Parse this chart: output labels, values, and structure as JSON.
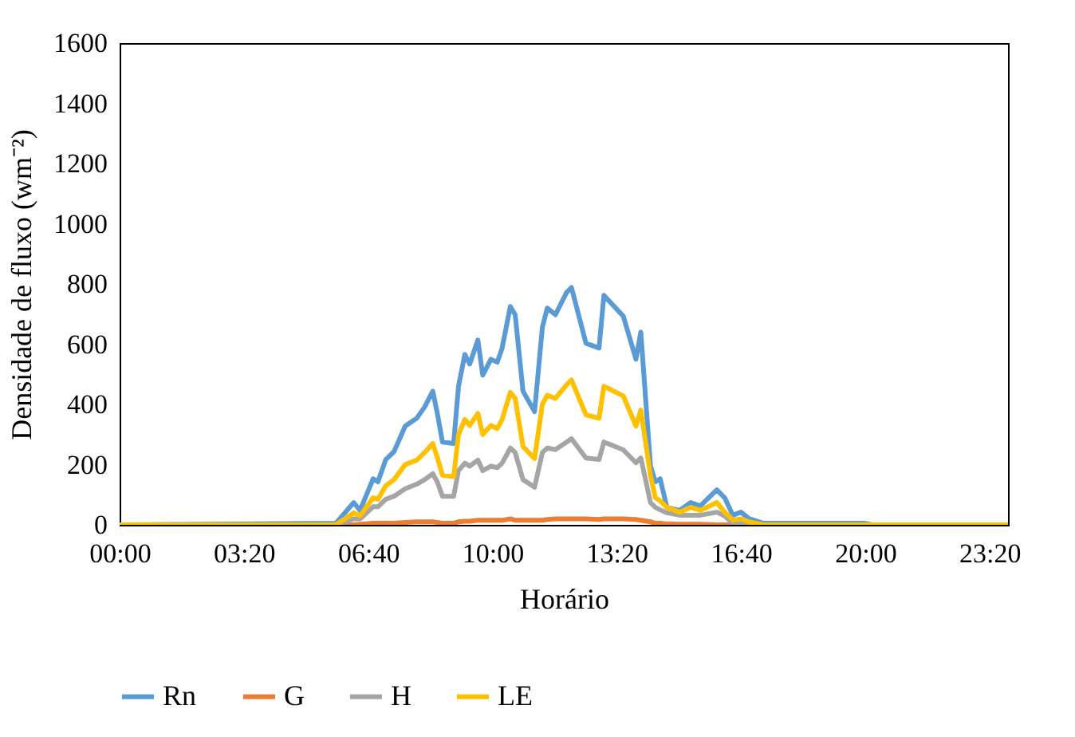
{
  "chart_data": {
    "type": "line",
    "xlabel": "Horário",
    "ylabel": "Densidade de fluxo (wm⁻²)",
    "x": [
      0,
      5.8,
      6.28,
      6.45,
      6.8,
      6.93,
      7.14,
      7.36,
      7.66,
      7.97,
      8.18,
      8.4,
      8.53,
      8.66,
      8.96,
      9.09,
      9.26,
      9.39,
      9.61,
      9.74,
      9.96,
      10.13,
      10.26,
      10.48,
      10.61,
      10.82,
      11.13,
      11.34,
      11.47,
      11.69,
      11.99,
      12.12,
      12.51,
      12.86,
      12.99,
      13.51,
      13.85,
      13.98,
      14.24,
      14.37,
      14.5,
      14.68,
      15.02,
      15.32,
      15.58,
      16.02,
      16.23,
      16.45,
      16.67,
      16.88,
      17.27,
      20.0,
      20.2,
      23.83
    ],
    "series": [
      {
        "name": "Rn",
        "color": "#5b9bd5",
        "values": [
          0,
          5,
          74,
          48,
          153,
          143,
          217,
          243,
          328,
          354,
          391,
          444,
          365,
          275,
          270,
          460,
          566,
          534,
          614,
          497,
          550,
          540,
          587,
          725,
          698,
          444,
          376,
          656,
          720,
          698,
          772,
          788,
          603,
          587,
          762,
          693,
          550,
          640,
          196,
          143,
          153,
          58,
          48,
          74,
          63,
          116,
          90,
          32,
          42,
          21,
          5,
          5,
          0,
          0
        ]
      },
      {
        "name": "G",
        "color": "#ed7d31",
        "values": [
          0,
          0,
          0,
          2,
          5,
          5,
          5,
          5,
          8,
          10,
          10,
          10,
          8,
          5,
          5,
          10,
          12,
          12,
          15,
          15,
          15,
          15,
          15,
          20,
          15,
          15,
          15,
          15,
          18,
          20,
          20,
          20,
          20,
          18,
          20,
          20,
          18,
          15,
          10,
          5,
          5,
          3,
          2,
          2,
          2,
          0,
          0,
          0,
          0,
          null,
          null,
          null,
          null,
          null
        ]
      },
      {
        "name": "H",
        "color": "#a5a5a5",
        "values": [
          0,
          0,
          20,
          20,
          60,
          60,
          85,
          95,
          120,
          135,
          150,
          170,
          140,
          95,
          95,
          180,
          205,
          195,
          215,
          180,
          195,
          190,
          205,
          255,
          240,
          150,
          125,
          240,
          255,
          250,
          275,
          286,
          222,
          217,
          275,
          249,
          206,
          222,
          74,
          58,
          50,
          40,
          32,
          32,
          32,
          42,
          30,
          5,
          8,
          3,
          0,
          0,
          0,
          0
        ]
      },
      {
        "name": "LE",
        "color": "#ffc000",
        "values": [
          0,
          0,
          40,
          30,
          90,
          85,
          130,
          150,
          200,
          215,
          240,
          270,
          220,
          165,
          160,
          300,
          350,
          330,
          370,
          300,
          330,
          320,
          350,
          440,
          420,
          260,
          220,
          400,
          430,
          420,
          465,
          481,
          365,
          354,
          460,
          428,
          328,
          381,
          164,
          90,
          80,
          58,
          42,
          58,
          48,
          74,
          42,
          16,
          20,
          10,
          0,
          0,
          0,
          0
        ]
      }
    ],
    "xlim": [
      0,
      23.83
    ],
    "xticks": [
      {
        "value": 0,
        "label": "00:00"
      },
      {
        "value": 3.333,
        "label": "03:20"
      },
      {
        "value": 6.667,
        "label": "06:40"
      },
      {
        "value": 10,
        "label": "10:00"
      },
      {
        "value": 13.333,
        "label": "13:20"
      },
      {
        "value": 16.667,
        "label": "16:40"
      },
      {
        "value": 20,
        "label": "20:00"
      },
      {
        "value": 23.333,
        "label": "23:20"
      }
    ],
    "ylim": [
      0,
      1600
    ],
    "yticks": [
      0,
      200,
      400,
      600,
      800,
      1000,
      1200,
      1400,
      1600
    ],
    "grid": false,
    "legend": "bottom",
    "marker": "none",
    "line_style": "solid"
  }
}
